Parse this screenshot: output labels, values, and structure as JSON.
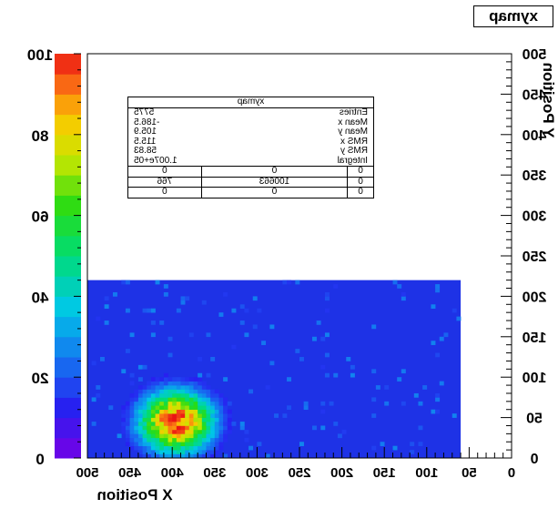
{
  "chart_data": {
    "type": "heatmap",
    "title": "xymap",
    "xlabel": "X Position",
    "ylabel": "Y Position",
    "mirrored": true,
    "x_range": [
      0,
      500
    ],
    "y_range": [
      0,
      500
    ],
    "x_ticks": [
      "0",
      "50",
      "100",
      "150",
      "200",
      "250",
      "300",
      "350",
      "400",
      "450",
      "500"
    ],
    "y_ticks": [
      "0",
      "50",
      "100",
      "150",
      "200",
      "250",
      "300",
      "350",
      "400",
      "450",
      "500"
    ],
    "colorbar_range": [
      0,
      100
    ],
    "colorbar_ticks": [
      "0",
      "20",
      "40",
      "60",
      "80",
      "100"
    ],
    "filled_region": {
      "x": [
        0,
        440
      ],
      "y": [
        0,
        220
      ]
    },
    "peak": {
      "x": 105,
      "y": 45,
      "value": 100
    },
    "stats": {
      "title": "xymap",
      "rows": [
        {
          "label": "Entries",
          "value": "5775"
        },
        {
          "label": "Mean x",
          "value": "-186.5"
        },
        {
          "label": "Mean y",
          "value": "105.9"
        },
        {
          "label": "RMS x",
          "value": "115.5"
        },
        {
          "label": "RMS y",
          "value": "58.83"
        },
        {
          "label": "Integral",
          "value": "1.007e+05"
        }
      ],
      "grid": [
        [
          "0",
          "0",
          "0"
        ],
        [
          "0",
          "100663",
          "766"
        ],
        [
          "0",
          "0",
          "0"
        ]
      ]
    }
  },
  "colors": {
    "background": "#ffffff",
    "low": "#1e32e6",
    "high": "#e61414"
  }
}
